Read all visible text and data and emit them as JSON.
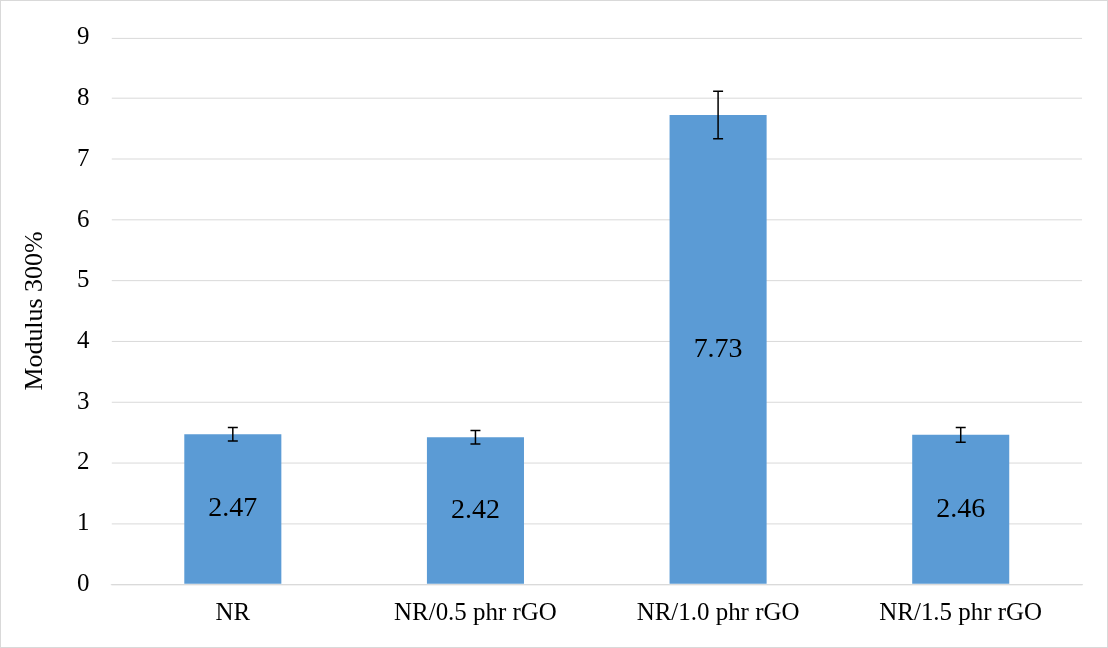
{
  "chart_data": {
    "type": "bar",
    "ylabel": "Modulus 300%",
    "categories": [
      "NR",
      "NR/0.5 phr rGO",
      "NR/1.0 phr rGO",
      "NR/1.5 phr rGO"
    ],
    "values": [
      2.47,
      2.42,
      7.73,
      2.46
    ],
    "errors": [
      0.11,
      0.11,
      0.39,
      0.12
    ],
    "color": "#5b9bd5",
    "ylim": [
      0,
      9
    ],
    "yticks": [
      0,
      1,
      2,
      3,
      4,
      5,
      6,
      7,
      8,
      9
    ],
    "grid": "y",
    "legend": false,
    "data_labels": true
  }
}
